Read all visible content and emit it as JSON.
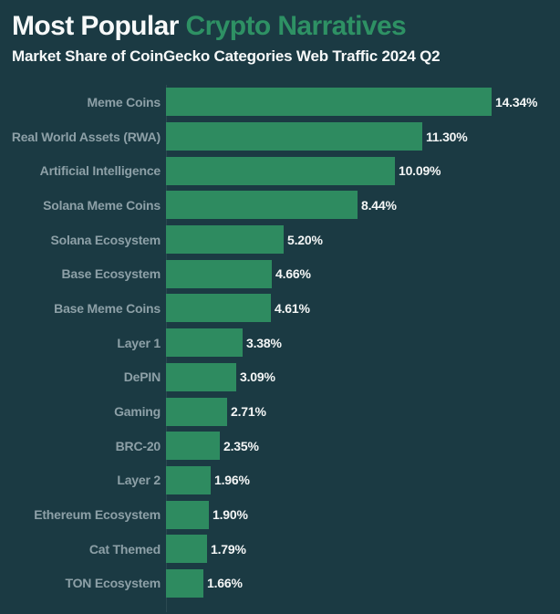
{
  "header": {
    "title_prefix": "Most Popular ",
    "title_highlight": "Crypto Narratives",
    "subtitle": "Market Share of CoinGecko Categories Web Traffic 2024 Q2"
  },
  "colors": {
    "background": "#1B3A43",
    "bar": "#2E8B60",
    "title_text": "#F7F9F9",
    "title_highlight": "#2E9164",
    "category_label": "#8DA0A7",
    "value_label": "#F4F6F6",
    "axis_line": "rgba(255,255,255,0.08)"
  },
  "chart_data": {
    "type": "bar",
    "orientation": "horizontal",
    "title": "Most Popular Crypto Narratives",
    "subtitle": "Market Share of CoinGecko Categories Web Traffic 2024 Q2",
    "unit": "%",
    "xlim": [
      0,
      15
    ],
    "grid": false,
    "legend": false,
    "value_labels_shown": true,
    "categories": [
      "Meme Coins",
      "Real World Assets (RWA)",
      "Artificial Intelligence",
      "Solana Meme Coins",
      "Solana Ecosystem",
      "Base Ecosystem",
      "Base Meme Coins",
      "Layer 1",
      "DePIN",
      "Gaming",
      "BRC-20",
      "Layer 2",
      "Ethereum Ecosystem",
      "Cat Themed",
      "TON Ecosystem"
    ],
    "values": [
      14.34,
      11.3,
      10.09,
      8.44,
      5.2,
      4.66,
      4.61,
      3.38,
      3.09,
      2.71,
      2.35,
      1.96,
      1.9,
      1.79,
      1.66
    ],
    "value_labels": [
      "14.34%",
      "11.30%",
      "10.09%",
      "8.44%",
      "5.20%",
      "4.66%",
      "4.61%",
      "3.38%",
      "3.09%",
      "2.71%",
      "2.35%",
      "1.96%",
      "1.90%",
      "1.79%",
      "1.66%"
    ]
  }
}
